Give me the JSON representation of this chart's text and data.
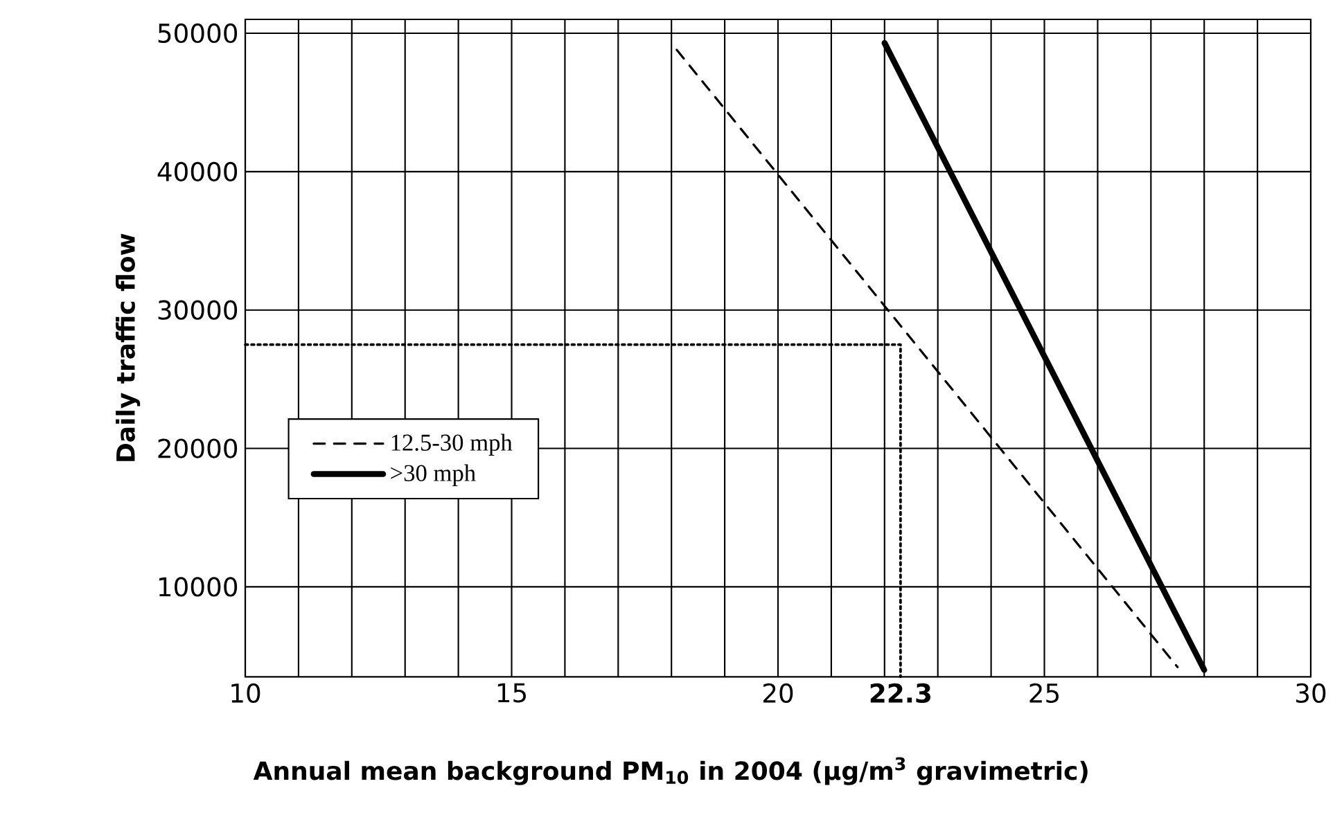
{
  "chart_data": {
    "type": "line",
    "xlabel": "Annual mean background PM$_{10}$ in 2004 (µg/m$^{3}$ gravimetric)",
    "ylabel": "Daily traffic flow",
    "xlim": [
      10,
      30
    ],
    "ylim": [
      3500,
      51000
    ],
    "xticks": [
      10,
      {
        "value": 11,
        "label": null
      },
      {
        "value": 12,
        "label": null
      },
      {
        "value": 13,
        "label": null
      },
      {
        "value": 14,
        "label": null
      },
      15,
      {
        "value": 16,
        "label": null
      },
      {
        "value": 17,
        "label": null
      },
      {
        "value": 18,
        "label": null
      },
      {
        "value": 19,
        "label": null
      },
      20,
      {
        "value": 21,
        "label": null
      },
      {
        "value": 22,
        "label": null
      },
      {
        "value": 22.3,
        "label": "22.3"
      },
      {
        "value": 23,
        "label": null
      },
      {
        "value": 24,
        "label": null
      },
      25,
      {
        "value": 26,
        "label": null
      },
      {
        "value": 27,
        "label": null
      },
      {
        "value": 28,
        "label": null
      },
      {
        "value": 29,
        "label": null
      },
      30
    ],
    "yticks": [
      10000,
      20000,
      30000,
      40000,
      50000
    ],
    "grid": true,
    "legend": "left",
    "series": [
      {
        "name": "12.5-30 mph",
        "color": "#000000",
        "line_style": "dashed",
        "x": [
          18.1,
          27.5
        ],
        "values": [
          48800,
          4200
        ]
      },
      {
        "name": ">30 mph",
        "color": "#000000",
        "line_style": "solid",
        "x": [
          22.0,
          28.0
        ],
        "values": [
          49300,
          4000
        ]
      },
      {
        "color": "#000000",
        "line_style": "dotted",
        "x": [
          10,
          22.3,
          22.3
        ],
        "values": [
          27500,
          27500,
          3500
        ]
      }
    ]
  }
}
